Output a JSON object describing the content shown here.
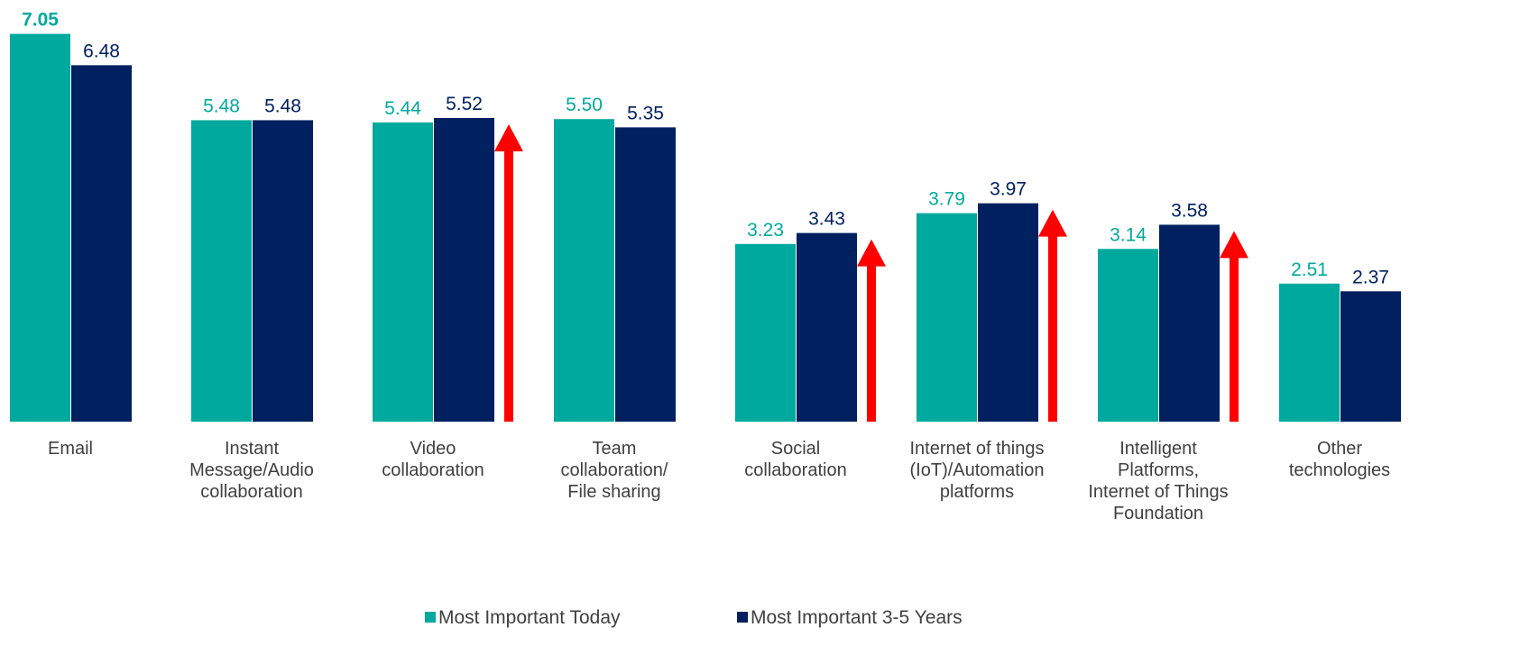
{
  "chart_data": {
    "type": "bar",
    "categories": [
      "Email",
      "Instant\nMessage/Audio\ncollaboration",
      "Video\ncollaboration",
      "Team\ncollaboration/\nFile sharing",
      "Social\ncollaboration",
      "Internet of things\n(IoT)/Automation\nplatforms",
      "Intelligent\nPlatforms,\nInternet of Things\nFoundation",
      "Other\ntechnologies"
    ],
    "series": [
      {
        "name": "Most Important Today",
        "color": "#00a99d",
        "values": [
          7.05,
          5.48,
          5.44,
          5.5,
          3.23,
          3.79,
          3.14,
          2.51
        ],
        "value_labels": [
          "7.05",
          "5.48",
          "5.44",
          "5.50",
          "3.23",
          "3.79",
          "3.14",
          "2.51"
        ]
      },
      {
        "name": "Most Important 3-5 Years",
        "color": "#002060",
        "values": [
          6.48,
          5.48,
          5.52,
          5.35,
          3.43,
          3.97,
          3.58,
          2.37
        ],
        "value_labels": [
          "6.48",
          "5.48",
          "5.52",
          "5.35",
          "3.43",
          "3.97",
          "3.58",
          "2.37"
        ]
      }
    ],
    "ylim": [
      0,
      7.6
    ],
    "arrow_color": "#ff0000",
    "legend": "bottom"
  }
}
